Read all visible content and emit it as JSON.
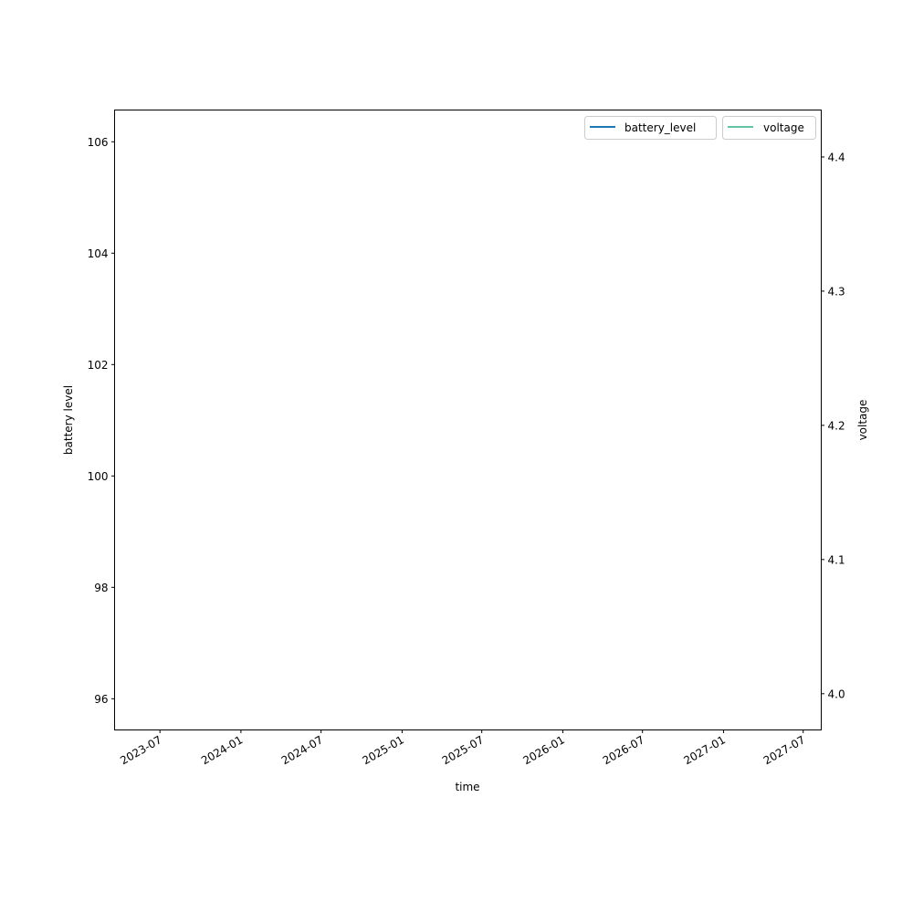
{
  "chart_data": {
    "type": "line",
    "title": "",
    "xlabel": "time",
    "ylabel": "battery level",
    "y2label": "voltage",
    "xlim": [
      "2023-03-20",
      "2027-08-11"
    ],
    "ylim": [
      95.44,
      106.57
    ],
    "y2lim": [
      3.973,
      4.435
    ],
    "xticks": [
      "2023-07",
      "2024-01",
      "2024-07",
      "2025-01",
      "2025-07",
      "2026-01",
      "2026-07",
      "2027-01",
      "2027-07"
    ],
    "yticks": [
      96,
      98,
      100,
      102,
      104,
      106
    ],
    "y2ticks": [
      4.0,
      4.1,
      4.2,
      4.3,
      4.4
    ],
    "grid": false,
    "series": [
      {
        "name": "battery_level",
        "axis": "left",
        "color": "#1f77b4",
        "points": []
      },
      {
        "name": "voltage",
        "axis": "right",
        "color": "#66c2a5",
        "points": []
      }
    ],
    "legend_placement": "top-right"
  }
}
